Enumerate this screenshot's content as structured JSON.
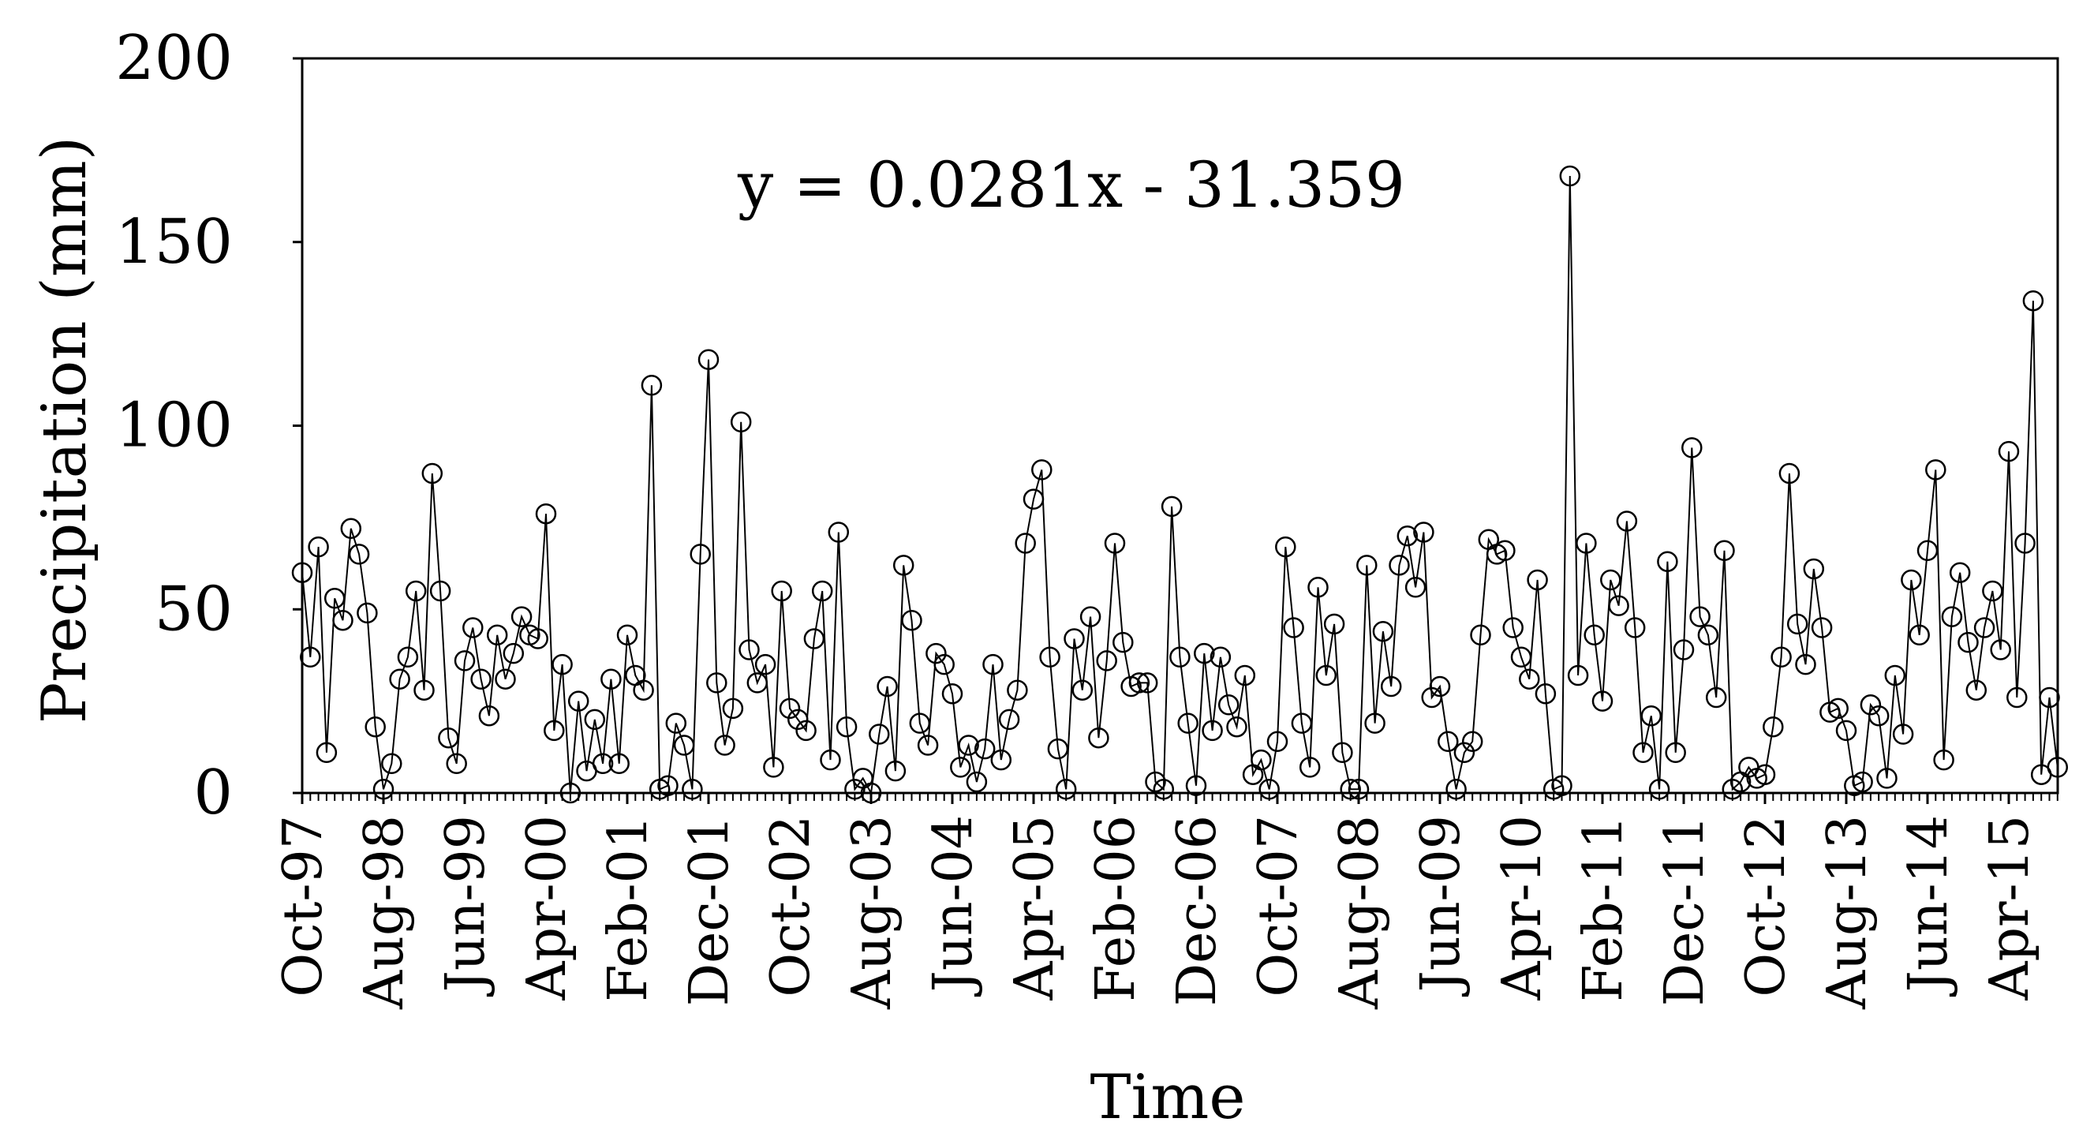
{
  "chart_data": {
    "type": "line",
    "title": "",
    "xlabel": "Time",
    "ylabel": "Precipitation (mm)",
    "ylim": [
      0,
      200
    ],
    "yticks": [
      0,
      50,
      100,
      150,
      200
    ],
    "xlim_months": [
      "Oct-97",
      "Oct-15"
    ],
    "xticks": [
      "Oct-97",
      "Aug-98",
      "Jun-99",
      "Apr-00",
      "Feb-01",
      "Dec-01",
      "Oct-02",
      "Aug-03",
      "Jun-04",
      "Apr-05",
      "Feb-06",
      "Dec-06",
      "Oct-07",
      "Aug-08",
      "Jun-09",
      "Apr-10",
      "Feb-11",
      "Dec-11",
      "Oct-12",
      "Aug-13",
      "Jun-14",
      "Apr-15"
    ],
    "grid": false,
    "legend": "none",
    "trendline": {
      "equation": "y = 0.0281x - 31.359",
      "slope": 0.0281,
      "intercept": -31.359,
      "color": "#ff0000"
    },
    "series": [
      {
        "color": "#000000",
        "marker": "open-circle",
        "values": [
          60,
          37,
          67,
          11,
          53,
          47,
          72,
          65,
          49,
          18,
          1,
          8,
          31,
          37,
          55,
          28,
          87,
          55,
          15,
          8,
          36,
          45,
          31,
          21,
          43,
          31,
          38,
          48,
          43,
          42,
          76,
          17,
          35,
          0,
          25,
          6,
          20,
          8,
          31,
          8,
          43,
          32,
          28,
          111,
          1,
          2,
          19,
          13,
          1,
          65,
          118,
          30,
          13,
          23,
          101,
          39,
          30,
          35,
          7,
          55,
          23,
          20,
          17,
          42,
          55,
          9,
          71,
          18,
          1,
          4,
          0,
          16,
          29,
          6,
          62,
          47,
          19,
          13,
          38,
          35,
          27,
          7,
          13,
          3,
          12,
          35,
          9,
          20,
          28,
          68,
          80,
          88,
          37,
          12,
          1,
          42,
          28,
          48,
          15,
          36,
          68,
          41,
          29,
          30,
          30,
          3,
          1,
          78,
          37,
          19,
          2,
          38,
          17,
          37,
          24,
          18,
          32,
          5,
          9,
          1,
          14,
          67,
          45,
          19,
          7,
          56,
          32,
          46,
          11,
          1,
          1,
          62,
          19,
          44,
          29,
          62,
          70,
          56,
          71,
          26,
          29,
          14,
          1,
          11,
          14,
          43,
          69,
          65,
          66,
          45,
          37,
          31,
          58,
          27,
          1,
          2,
          168,
          32,
          68,
          43,
          25,
          58,
          51,
          74,
          45,
          11,
          21,
          1,
          63,
          11,
          39,
          94,
          48,
          43,
          26,
          66,
          1,
          3,
          7,
          4,
          5,
          18,
          37,
          87,
          46,
          35,
          61,
          45,
          22,
          23,
          17,
          2,
          3,
          24,
          21,
          4,
          32,
          16,
          58,
          43,
          66,
          88,
          9,
          48,
          60,
          41,
          28,
          45,
          55,
          39,
          93,
          26,
          68,
          134,
          5,
          26,
          7
        ]
      }
    ]
  }
}
